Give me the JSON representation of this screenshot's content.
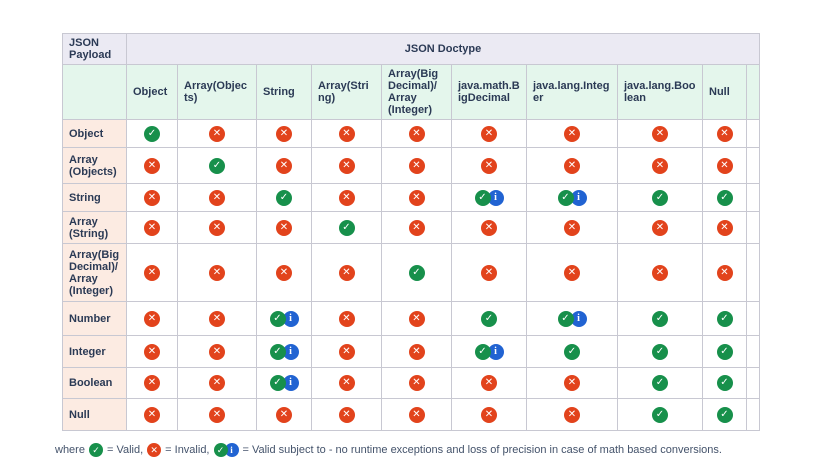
{
  "table": {
    "corner_label": "JSON Payload",
    "doctype_header": "JSON Doctype",
    "columns": [
      "Object",
      "Array(Objects)",
      "String",
      "Array(String)",
      "Array(BigDecimal)/ Array (Integer)",
      "java.math.BigDecimal",
      "java.lang.Integer",
      "java.lang.Boolean",
      "Null"
    ],
    "rows": [
      {
        "label": "Object",
        "cells": [
          "valid",
          "invalid",
          "invalid",
          "invalid",
          "invalid",
          "invalid",
          "invalid",
          "invalid",
          "invalid"
        ]
      },
      {
        "label": "Array (Objects)",
        "cells": [
          "invalid",
          "valid",
          "invalid",
          "invalid",
          "invalid",
          "invalid",
          "invalid",
          "invalid",
          "invalid"
        ]
      },
      {
        "label": "String",
        "cells": [
          "invalid",
          "invalid",
          "valid",
          "invalid",
          "invalid",
          "valid-info",
          "valid-info",
          "valid",
          "valid"
        ]
      },
      {
        "label": "Array (String)",
        "cells": [
          "invalid",
          "invalid",
          "invalid",
          "valid",
          "invalid",
          "invalid",
          "invalid",
          "invalid",
          "invalid"
        ]
      },
      {
        "label": "Array(BigDecimal)/ Array (Integer)",
        "cells": [
          "invalid",
          "invalid",
          "invalid",
          "invalid",
          "valid",
          "invalid",
          "invalid",
          "invalid",
          "invalid"
        ]
      },
      {
        "label": "Number",
        "cells": [
          "invalid",
          "invalid",
          "valid-info",
          "invalid",
          "invalid",
          "valid",
          "valid-info",
          "valid",
          "valid"
        ]
      },
      {
        "label": "Integer",
        "cells": [
          "invalid",
          "invalid",
          "valid-info",
          "invalid",
          "invalid",
          "valid-info",
          "valid",
          "valid",
          "valid"
        ]
      },
      {
        "label": "Boolean",
        "cells": [
          "invalid",
          "invalid",
          "valid-info",
          "invalid",
          "invalid",
          "invalid",
          "invalid",
          "valid",
          "valid"
        ]
      },
      {
        "label": "Null",
        "cells": [
          "invalid",
          "invalid",
          "invalid",
          "invalid",
          "invalid",
          "invalid",
          "invalid",
          "valid",
          "valid"
        ]
      }
    ]
  },
  "icons": {
    "valid_glyph": "✓",
    "invalid_glyph": "✕",
    "info_glyph": "i"
  },
  "legend": {
    "prefix": "where",
    "valid_label": "= Valid,",
    "invalid_label": "= Invalid,",
    "valid_info_label": "= Valid subject to -  no runtime exceptions and loss of precision in case of math based conversions."
  },
  "colors": {
    "valid": "#17904B",
    "invalid": "#E2431C",
    "info": "#2163D2",
    "text": "#2B3A55",
    "border": "#C8C8D2",
    "header_doctype_bg": "#EBEAF3",
    "header_col_bg": "#E4F6EC",
    "row_label_bg": "#FCEBE2",
    "legend_text": "#44536B"
  }
}
